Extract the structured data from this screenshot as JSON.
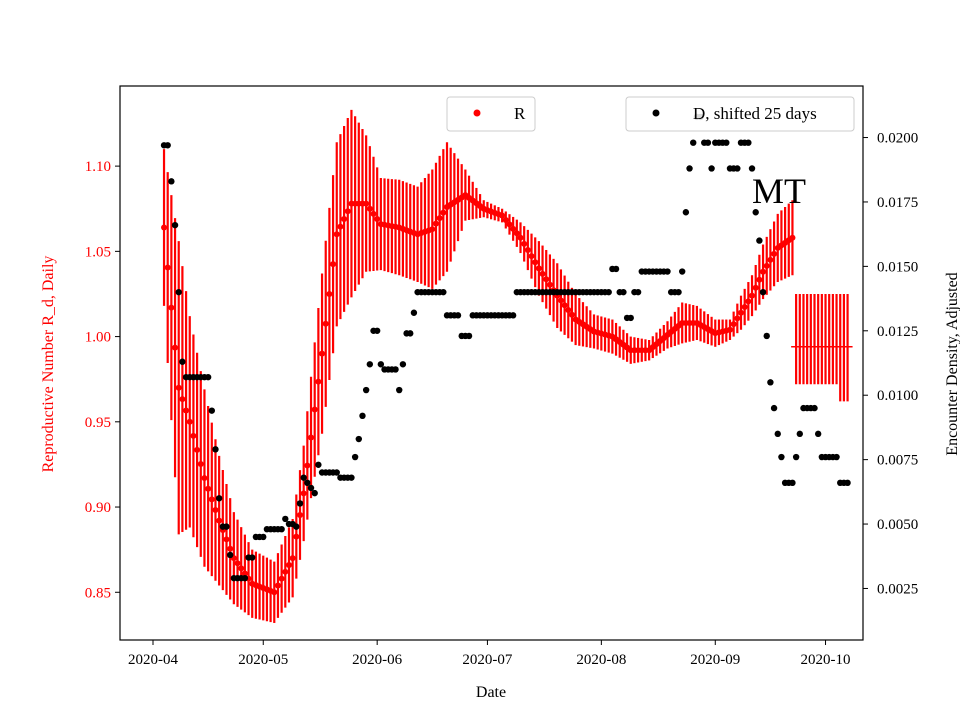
{
  "chart_data": {
    "type": "scatter",
    "overlay_label": "MT",
    "colors": {
      "R": "#ff0000",
      "D": "#000000",
      "axis": "#000000",
      "background": "#ffffff"
    },
    "x_axis": {
      "label": "Date",
      "start": "2020-03-31",
      "end": "2020-10-20",
      "ticks": [
        "2020-04",
        "2020-05",
        "2020-06",
        "2020-07",
        "2020-08",
        "2020-09",
        "2020-10"
      ],
      "tick_days": [
        0,
        30,
        61,
        91,
        122,
        153,
        183
      ]
    },
    "y_left": {
      "label": "Reproductive Number R_d, Daily",
      "range": [
        0.822,
        1.147
      ],
      "ticks": [
        "0.85",
        "0.90",
        "0.95",
        "1.00",
        "1.05",
        "1.10"
      ],
      "tick_values": [
        0.85,
        0.9,
        0.95,
        1.0,
        1.05,
        1.1
      ]
    },
    "y_right": {
      "label": "Encounter Density, Adjusted",
      "range": [
        0.0005,
        0.022
      ],
      "ticks": [
        "0.0025",
        "0.0050",
        "0.0075",
        "0.0100",
        "0.0125",
        "0.0150",
        "0.0175",
        "0.0200"
      ],
      "tick_values": [
        0.0025,
        0.005,
        0.0075,
        0.01,
        0.0125,
        0.015,
        0.0175,
        0.02
      ]
    },
    "legend": {
      "R": "R",
      "D": "D, shifted 25 days"
    },
    "series": [
      {
        "name": "R",
        "axis": "left",
        "kind": "points_with_error_bars",
        "note": "daily R estimate with uncertainty bars, anchors interpolated daily",
        "anchors_day": [
          3,
          7,
          10,
          14,
          18,
          22,
          27,
          33,
          38,
          41,
          46,
          50,
          54,
          58,
          62,
          67,
          72,
          76,
          80,
          85,
          90,
          95,
          100,
          105,
          110,
          115,
          120,
          125,
          130,
          135,
          140,
          144,
          148,
          153,
          157,
          160,
          163,
          166,
          170,
          174
        ],
        "anchors_value": [
          1.064,
          0.97,
          0.95,
          0.917,
          0.892,
          0.87,
          0.855,
          0.85,
          0.87,
          0.908,
          0.99,
          1.06,
          1.078,
          1.078,
          1.066,
          1.064,
          1.06,
          1.063,
          1.076,
          1.083,
          1.075,
          1.071,
          1.058,
          1.04,
          1.024,
          1.01,
          1.003,
          1.0,
          0.992,
          0.992,
          1.001,
          1.008,
          1.008,
          1.002,
          1.004,
          1.014,
          1.024,
          1.038,
          1.052,
          1.058
        ],
        "anchors_err": [
          0.046,
          0.086,
          0.062,
          0.052,
          0.038,
          0.027,
          0.02,
          0.018,
          0.023,
          0.028,
          0.047,
          0.054,
          0.055,
          0.04,
          0.027,
          0.028,
          0.028,
          0.035,
          0.038,
          0.015,
          0.005,
          0.004,
          0.009,
          0.016,
          0.019,
          0.015,
          0.01,
          0.01,
          0.008,
          0.006,
          0.008,
          0.012,
          0.01,
          0.008,
          0.006,
          0.01,
          0.012,
          0.016,
          0.02,
          0.022
        ]
      },
      {
        "name": "R_tail",
        "axis": "left",
        "kind": "horizontal_line_with_error_bars",
        "day_start": 175,
        "day_end": 189,
        "value": 0.994,
        "error_upper": 1.025,
        "error_lower": 0.972,
        "error_lower_last": 0.962
      },
      {
        "name": "D",
        "axis": "right",
        "kind": "points",
        "note": "step levels by day range [start, end, value]",
        "segments": [
          [
            3,
            4,
            0.0197
          ],
          [
            5,
            5,
            0.0183
          ],
          [
            6,
            6,
            0.0166
          ],
          [
            7,
            7,
            0.014
          ],
          [
            8,
            8,
            0.0113
          ],
          [
            9,
            15,
            0.0107
          ],
          [
            16,
            16,
            0.0094
          ],
          [
            17,
            17,
            0.0079
          ],
          [
            18,
            18,
            0.006
          ],
          [
            19,
            20,
            0.0049
          ],
          [
            21,
            21,
            0.0038
          ],
          [
            22,
            25,
            0.0029
          ],
          [
            26,
            27,
            0.0037
          ],
          [
            28,
            29,
            0.0045
          ],
          [
            30,
            30,
            0.0045
          ],
          [
            31,
            35,
            0.0048
          ],
          [
            36,
            36,
            0.0052
          ],
          [
            37,
            38,
            0.005
          ],
          [
            39,
            39,
            0.0049
          ],
          [
            40,
            40,
            0.0058
          ],
          [
            41,
            41,
            0.0068
          ],
          [
            42,
            42,
            0.0066
          ],
          [
            43,
            43,
            0.0064
          ],
          [
            44,
            44,
            0.0062
          ],
          [
            45,
            45,
            0.0073
          ],
          [
            46,
            50,
            0.007
          ],
          [
            51,
            54,
            0.0068
          ],
          [
            55,
            55,
            0.0076
          ],
          [
            56,
            56,
            0.0083
          ],
          [
            57,
            57,
            0.0092
          ],
          [
            58,
            58,
            0.0102
          ],
          [
            59,
            59,
            0.0112
          ],
          [
            60,
            61,
            0.0125
          ],
          [
            62,
            62,
            0.0112
          ],
          [
            63,
            66,
            0.011
          ],
          [
            67,
            67,
            0.0102
          ],
          [
            68,
            68,
            0.0112
          ],
          [
            69,
            70,
            0.0124
          ],
          [
            71,
            71,
            0.0132
          ],
          [
            72,
            74,
            0.014
          ],
          [
            75,
            79,
            0.014
          ],
          [
            80,
            83,
            0.0131
          ],
          [
            84,
            86,
            0.0123
          ],
          [
            87,
            88,
            0.0131
          ],
          [
            89,
            98,
            0.0131
          ],
          [
            99,
            120,
            0.014
          ],
          [
            121,
            124,
            0.014
          ],
          [
            125,
            125,
            0.0149
          ],
          [
            126,
            126,
            0.0149
          ],
          [
            127,
            128,
            0.014
          ],
          [
            129,
            130,
            0.013
          ],
          [
            131,
            132,
            0.014
          ],
          [
            133,
            140,
            0.0148
          ],
          [
            141,
            143,
            0.014
          ],
          [
            144,
            144,
            0.0148
          ],
          [
            145,
            145,
            0.0171
          ],
          [
            146,
            146,
            0.0188
          ],
          [
            147,
            147,
            0.0198
          ],
          [
            148,
            149,
            0.0208
          ],
          [
            150,
            151,
            0.0198
          ],
          [
            152,
            152,
            0.0188
          ],
          [
            153,
            156,
            0.0198
          ],
          [
            157,
            159,
            0.0188
          ],
          [
            160,
            162,
            0.0198
          ],
          [
            163,
            163,
            0.0188
          ],
          [
            164,
            164,
            0.0171
          ],
          [
            165,
            165,
            0.016
          ],
          [
            166,
            166,
            0.014
          ],
          [
            167,
            167,
            0.0123
          ],
          [
            168,
            168,
            0.0105
          ],
          [
            169,
            169,
            0.0095
          ],
          [
            170,
            170,
            0.0085
          ],
          [
            171,
            171,
            0.0076
          ],
          [
            172,
            174,
            0.0066
          ],
          [
            175,
            175,
            0.0076
          ],
          [
            176,
            176,
            0.0085
          ],
          [
            177,
            180,
            0.0095
          ],
          [
            181,
            181,
            0.0085
          ],
          [
            182,
            186,
            0.0076
          ],
          [
            187,
            189,
            0.0066
          ]
        ]
      }
    ]
  }
}
